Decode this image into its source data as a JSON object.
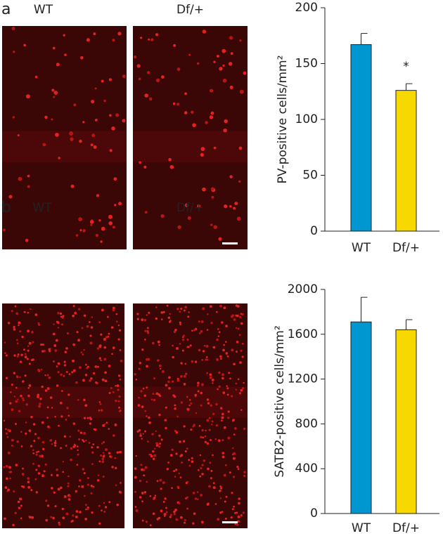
{
  "panels": [
    {
      "label": "a",
      "images": [
        "WT",
        "Df/+"
      ]
    },
    {
      "label": "b",
      "images": [
        "WT",
        "Df/+"
      ]
    }
  ],
  "chart_data": [
    {
      "type": "bar",
      "ylabel": "PV-positive cells/mm²",
      "categories": [
        "WT",
        "Df/+"
      ],
      "values": [
        167,
        126
      ],
      "errors": [
        10,
        6
      ],
      "colors": [
        "#0097d0",
        "#f7d800"
      ],
      "ylim": [
        0,
        200
      ],
      "yticks": [
        0,
        50,
        100,
        150,
        200
      ],
      "annotations": [
        {
          "category": "Df/+",
          "text": "*"
        }
      ]
    },
    {
      "type": "bar",
      "ylabel": "SATB2-positive cells/mm²",
      "categories": [
        "WT",
        "Df/+"
      ],
      "values": [
        1710,
        1640
      ],
      "errors": [
        220,
        90
      ],
      "colors": [
        "#0097d0",
        "#f7d800"
      ],
      "ylim": [
        0,
        2000
      ],
      "yticks": [
        0,
        400,
        800,
        1200,
        1600,
        2000
      ]
    }
  ]
}
